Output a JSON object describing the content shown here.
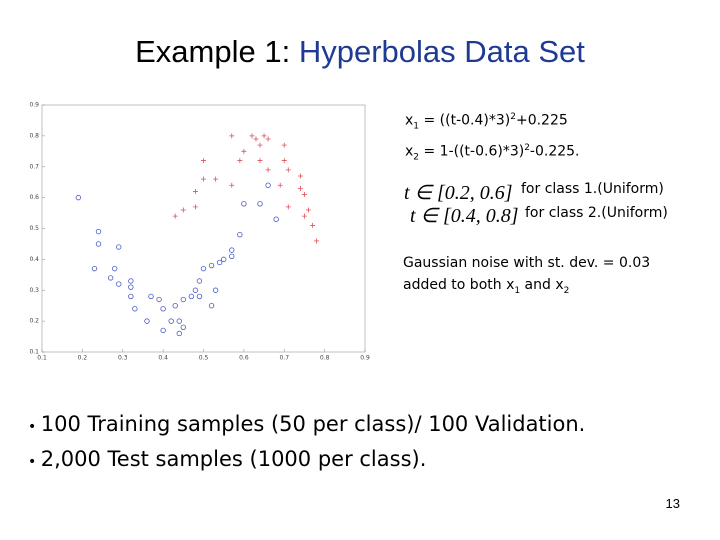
{
  "header": {
    "title_plain": "Example 1: ",
    "title_colored": "Hyperbolas Data Set"
  },
  "formulas": [
    {
      "var": "x",
      "sub": "1",
      "a": " = ((t-0.4)*3)",
      "sup": "2",
      "b": "+0.225"
    },
    {
      "var": "x",
      "sub": "2",
      "a": " = 1-((t-0.6)*3)",
      "sup": "2",
      "b": "-0.225."
    }
  ],
  "intervals": [
    {
      "math": "t ∈ [0.2, 0.6]",
      "text": "for class 1.(Uniform)"
    },
    {
      "math": "t ∈ [0.4, 0.8]",
      "text": "for class 2.(Uniform)"
    }
  ],
  "noise": {
    "line1": "Gaussian noise with st. dev. = 0.03",
    "line2": {
      "a": "added to both x",
      "sub1": "1",
      "b": " and x",
      "sub2": "2"
    }
  },
  "bullets": [
    "100 Training samples (50 per class)/ 100 Validation.",
    "2,000 Test samples (1000 per class)."
  ],
  "footer": {
    "page": "13"
  },
  "chart_data": {
    "type": "scatter",
    "xlim": [
      0.1,
      0.9
    ],
    "ylim": [
      0.1,
      0.9
    ],
    "xticks": [
      0.1,
      0.2,
      0.3,
      0.4,
      0.5,
      0.6,
      0.7,
      0.8,
      0.9
    ],
    "yticks": [
      0.1,
      0.2,
      0.3,
      0.4,
      0.5,
      0.6,
      0.7,
      0.8,
      0.9
    ],
    "series": [
      {
        "marker": "plus",
        "color": "#e0505a",
        "x": [
          0.57,
          0.62,
          0.63,
          0.65,
          0.66,
          0.6,
          0.64,
          0.59,
          0.57,
          0.5,
          0.48,
          0.53,
          0.7,
          0.71,
          0.74,
          0.69,
          0.75,
          0.76,
          0.75,
          0.45,
          0.43,
          0.71,
          0.77,
          0.78,
          0.66,
          0.5,
          0.48,
          0.64,
          0.74,
          0.7
        ],
        "values": [
          0.8,
          0.8,
          0.79,
          0.8,
          0.79,
          0.75,
          0.77,
          0.72,
          0.64,
          0.66,
          0.62,
          0.66,
          0.72,
          0.69,
          0.67,
          0.64,
          0.61,
          0.56,
          0.54,
          0.56,
          0.54,
          0.57,
          0.51,
          0.46,
          0.69,
          0.72,
          0.57,
          0.72,
          0.63,
          0.77
        ]
      },
      {
        "marker": "circle",
        "color": "#4a5bc4",
        "x": [
          0.19,
          0.24,
          0.24,
          0.29,
          0.23,
          0.28,
          0.29,
          0.32,
          0.32,
          0.33,
          0.37,
          0.36,
          0.4,
          0.42,
          0.43,
          0.44,
          0.45,
          0.47,
          0.48,
          0.5,
          0.52,
          0.49,
          0.52,
          0.53,
          0.54,
          0.55,
          0.57,
          0.59,
          0.6,
          0.64,
          0.66,
          0.68,
          0.44,
          0.4,
          0.32,
          0.27,
          0.39,
          0.45,
          0.49,
          0.57
        ],
        "values": [
          0.6,
          0.49,
          0.45,
          0.44,
          0.37,
          0.37,
          0.32,
          0.33,
          0.28,
          0.24,
          0.28,
          0.2,
          0.24,
          0.2,
          0.25,
          0.2,
          0.27,
          0.28,
          0.3,
          0.37,
          0.38,
          0.33,
          0.25,
          0.3,
          0.39,
          0.4,
          0.41,
          0.48,
          0.58,
          0.58,
          0.64,
          0.53,
          0.16,
          0.17,
          0.31,
          0.34,
          0.27,
          0.18,
          0.28,
          0.43
        ]
      }
    ]
  }
}
